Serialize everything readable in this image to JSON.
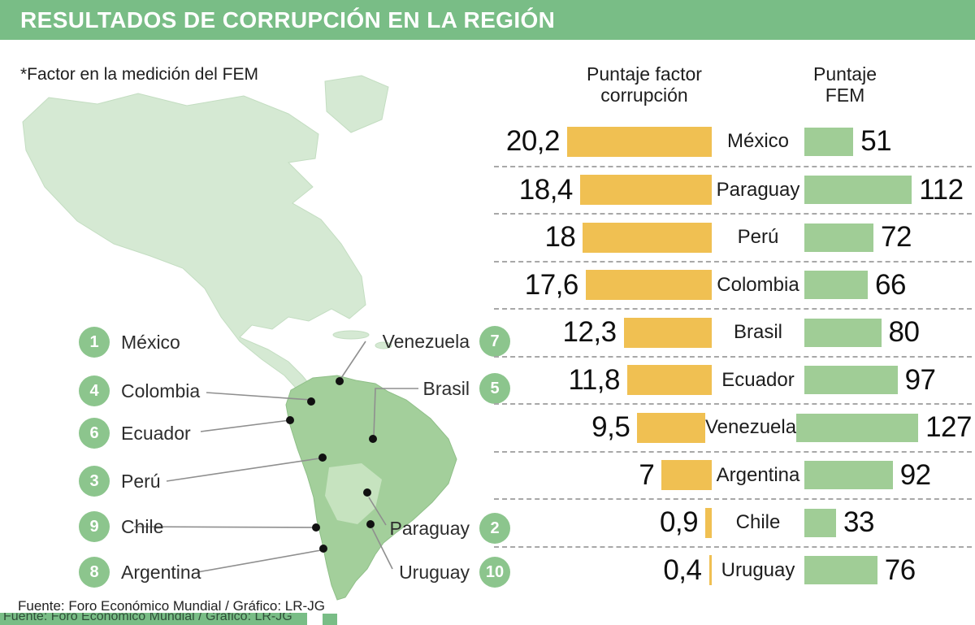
{
  "header": {
    "title": "RESULTADOS DE CORRUPCIÓN EN LA REGIÓN"
  },
  "note": "*Factor en la medición del FEM",
  "footer": "Fuente: Foro Económico Mundial / Gráfico: LR-JG",
  "bottom_strip_text": "Fuente: Foro Económico Mundial / Gráfico: LR-JG",
  "colors": {
    "header": "#79bd86",
    "factor_bar": "#f0c052",
    "fem_bar": "#a0cd96",
    "circle": "#8cc58d",
    "map_north": "#d5e9d3",
    "map_south": "#a3cf9b"
  },
  "map": {
    "left_labels": [
      {
        "num": "1",
        "name": "México"
      },
      {
        "num": "4",
        "name": "Colombia"
      },
      {
        "num": "6",
        "name": "Ecuador"
      },
      {
        "num": "3",
        "name": "Perú"
      },
      {
        "num": "9",
        "name": "Chile"
      },
      {
        "num": "8",
        "name": "Argentina"
      }
    ],
    "right_labels": [
      {
        "num": "7",
        "name": "Venezuela"
      },
      {
        "num": "5",
        "name": "Brasil"
      },
      {
        "num": "2",
        "name": "Paraguay"
      },
      {
        "num": "10",
        "name": "Uruguay"
      }
    ]
  },
  "chart_data": {
    "type": "bar",
    "title": "RESULTADOS DE CORRUPCIÓN EN LA REGIÓN",
    "note": "*Factor en la medición del FEM",
    "columns": [
      {
        "label": "Puntaje factor corrupción",
        "color": "#f0c052"
      },
      {
        "label": "Puntaje FEM",
        "color": "#a0cd96"
      }
    ],
    "rows": [
      {
        "rank": 1,
        "country": "México",
        "factor": 20.2,
        "factor_label": "20,2",
        "fem": 51
      },
      {
        "rank": 2,
        "country": "Paraguay",
        "factor": 18.4,
        "factor_label": "18,4",
        "fem": 112
      },
      {
        "rank": 3,
        "country": "Perú",
        "factor": 18,
        "factor_label": "18",
        "fem": 72
      },
      {
        "rank": 4,
        "country": "Colombia",
        "factor": 17.6,
        "factor_label": "17,6",
        "fem": 66
      },
      {
        "rank": 5,
        "country": "Brasil",
        "factor": 12.3,
        "factor_label": "12,3",
        "fem": 80
      },
      {
        "rank": 6,
        "country": "Ecuador",
        "factor": 11.8,
        "factor_label": "11,8",
        "fem": 97
      },
      {
        "rank": 7,
        "country": "Venezuela",
        "factor": 9.5,
        "factor_label": "9,5",
        "fem": 127
      },
      {
        "rank": 8,
        "country": "Argentina",
        "factor": 7,
        "factor_label": "7",
        "fem": 92
      },
      {
        "rank": 9,
        "country": "Chile",
        "factor": 0.9,
        "factor_label": "0,9",
        "fem": 33
      },
      {
        "rank": 10,
        "country": "Uruguay",
        "factor": 0.4,
        "factor_label": "0,4",
        "fem": 76
      }
    ],
    "factor_axis_max": 20.2,
    "fem_axis_max": 127,
    "source": "Fuente: Foro Económico Mundial / Gráfico: LR-JG"
  }
}
